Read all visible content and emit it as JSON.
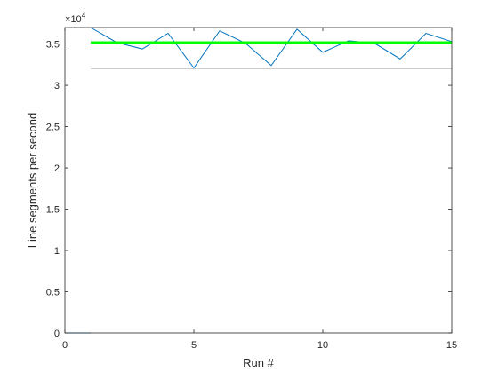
{
  "chart_data": {
    "type": "line",
    "xlabel": "Run #",
    "ylabel": "Line segments per second",
    "exponent_label": {
      "base": "10",
      "power": "4"
    },
    "xlim": [
      0,
      15
    ],
    "ylim": [
      0,
      37000
    ],
    "x_ticks": [
      0,
      5,
      10,
      15
    ],
    "x_tick_labels": [
      "0",
      "5",
      "10",
      "15"
    ],
    "y_ticks": [
      0,
      5000,
      10000,
      15000,
      20000,
      25000,
      30000,
      35000
    ],
    "y_tick_labels": [
      "0",
      "0.5",
      "1",
      "1.5",
      "2",
      "2.5",
      "3",
      "3.5"
    ],
    "grid": false,
    "box": true,
    "series": [
      {
        "color": "#0072BD",
        "stroke_style": "thin",
        "segments": [
          {
            "x": [
              0,
              1
            ],
            "y": [
              0,
              0
            ]
          },
          {
            "x": [
              1,
              2,
              3,
              4,
              5,
              6,
              7,
              8,
              9,
              10,
              11,
              12,
              13,
              14,
              15
            ],
            "y": [
              37000,
              35200,
              34400,
              36300,
              32100,
              36600,
              35100,
              32400,
              36800,
              34000,
              35400,
              35100,
              33200,
              36300,
              35300
            ]
          }
        ]
      },
      {
        "color": "#00FF00",
        "stroke_style": "thick",
        "segments": [
          {
            "x": [
              1,
              15
            ],
            "y": [
              35200,
              35200
            ]
          }
        ]
      },
      {
        "color": "#CCCCCC",
        "stroke_style": "thin",
        "segments": [
          {
            "x": [
              1,
              15
            ],
            "y": [
              32000,
              32000
            ]
          }
        ]
      }
    ]
  }
}
